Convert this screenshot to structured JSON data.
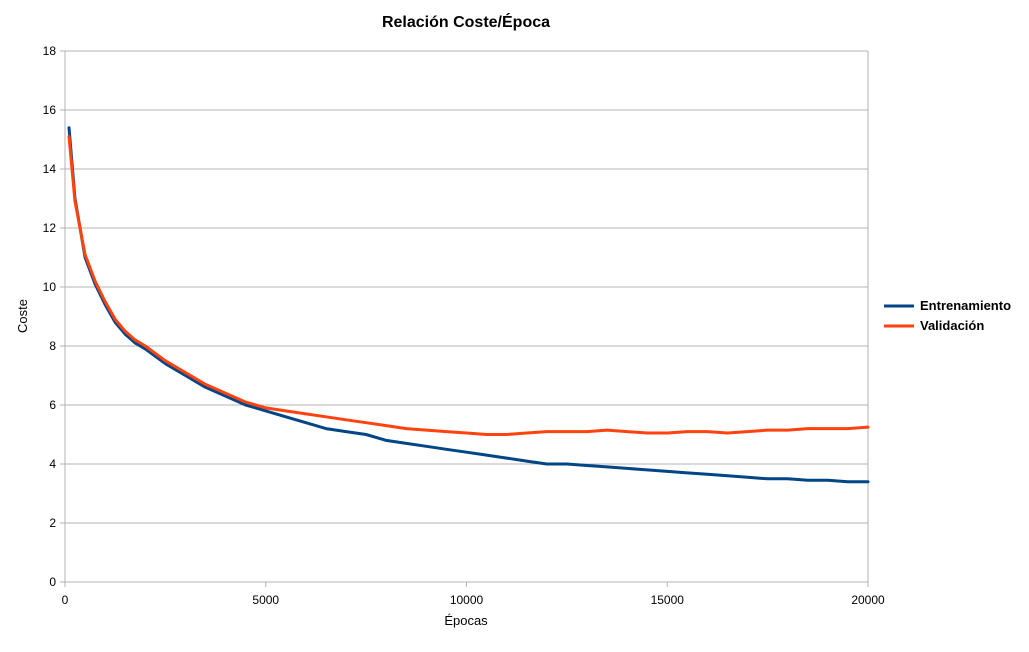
{
  "chart_data": {
    "type": "line",
    "title": "Relación Coste/Época",
    "xlabel": "Épocas",
    "ylabel": "Coste",
    "xlim": [
      0,
      20000
    ],
    "ylim": [
      0,
      18
    ],
    "x_ticks": [
      "0",
      "5000",
      "10000",
      "15000",
      "20000"
    ],
    "y_ticks": [
      "0",
      "2",
      "4",
      "6",
      "8",
      "10",
      "12",
      "14",
      "16",
      "18"
    ],
    "grid": "horizontal",
    "legend_position": "right",
    "colors": {
      "Entrenamiento": "#004586",
      "Validación": "#ff420e",
      "grid": "#b3b3b3"
    },
    "series": [
      {
        "name": "Entrenamiento",
        "x": [
          100,
          250,
          500,
          750,
          1000,
          1250,
          1500,
          1750,
          2000,
          2500,
          3000,
          3500,
          4000,
          4500,
          5000,
          5500,
          6000,
          6500,
          7000,
          7500,
          8000,
          8500,
          9000,
          9500,
          10000,
          10500,
          11000,
          11500,
          12000,
          12500,
          13000,
          13500,
          14000,
          14500,
          15000,
          15500,
          16000,
          16500,
          17000,
          17500,
          18000,
          18500,
          19000,
          19500,
          20000
        ],
        "y": [
          15.4,
          13.0,
          11.0,
          10.1,
          9.4,
          8.8,
          8.4,
          8.1,
          7.9,
          7.4,
          7.0,
          6.6,
          6.3,
          6.0,
          5.8,
          5.6,
          5.4,
          5.2,
          5.1,
          5.0,
          4.8,
          4.7,
          4.6,
          4.5,
          4.4,
          4.3,
          4.2,
          4.1,
          4.0,
          4.0,
          3.95,
          3.9,
          3.85,
          3.8,
          3.75,
          3.7,
          3.65,
          3.6,
          3.55,
          3.5,
          3.5,
          3.45,
          3.45,
          3.4,
          3.4
        ]
      },
      {
        "name": "Validación",
        "x": [
          100,
          250,
          500,
          750,
          1000,
          1250,
          1500,
          1750,
          2000,
          2500,
          3000,
          3500,
          4000,
          4500,
          5000,
          5500,
          6000,
          6500,
          7000,
          7500,
          8000,
          8500,
          9000,
          9500,
          10000,
          10500,
          11000,
          11500,
          12000,
          12500,
          13000,
          13500,
          14000,
          14500,
          15000,
          15500,
          16000,
          16500,
          17000,
          17500,
          18000,
          18500,
          19000,
          19500,
          20000
        ],
        "y": [
          15.1,
          12.9,
          11.1,
          10.2,
          9.5,
          8.9,
          8.5,
          8.2,
          8.0,
          7.5,
          7.1,
          6.7,
          6.4,
          6.1,
          5.9,
          5.8,
          5.7,
          5.6,
          5.5,
          5.4,
          5.3,
          5.2,
          5.15,
          5.1,
          5.05,
          5.0,
          5.0,
          5.05,
          5.1,
          5.1,
          5.1,
          5.15,
          5.1,
          5.05,
          5.05,
          5.1,
          5.1,
          5.05,
          5.1,
          5.15,
          5.15,
          5.2,
          5.2,
          5.2,
          5.25
        ]
      }
    ]
  }
}
